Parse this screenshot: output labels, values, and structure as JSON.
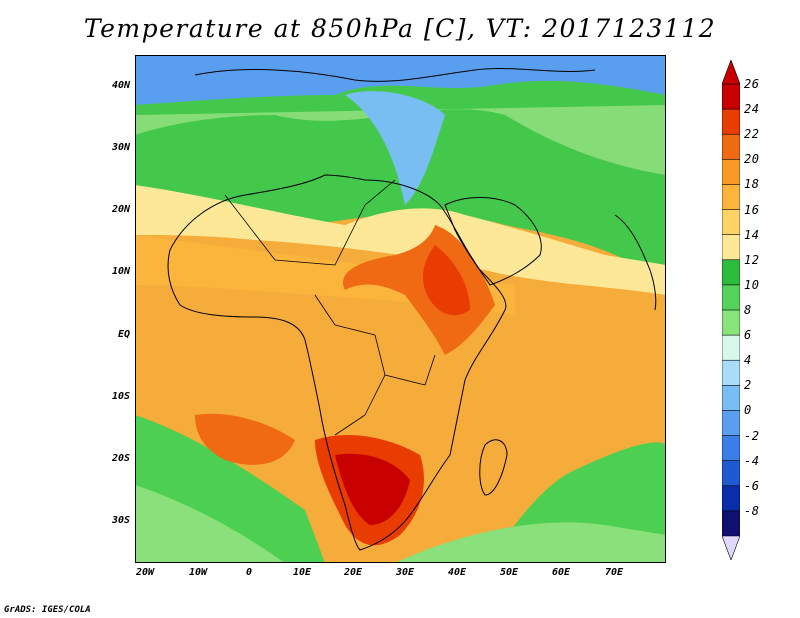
{
  "title": "Temperature at 850hPa [C], VT: 2017123112",
  "credit": "GrADS: IGES/COLA",
  "lat_labels": [
    "40N",
    "30N",
    "20N",
    "10N",
    "EQ",
    "10S",
    "20S",
    "30S"
  ],
  "lon_labels": [
    "20W",
    "10W",
    "0",
    "10E",
    "20E",
    "30E",
    "40E",
    "50E",
    "60E",
    "70E"
  ],
  "colorbar": {
    "labels": [
      "26",
      "24",
      "22",
      "20",
      "18",
      "16",
      "14",
      "12",
      "10",
      "8",
      "6",
      "4",
      "2",
      "0",
      "-2",
      "-4",
      "-6",
      "-8"
    ],
    "colors": [
      "#c80000",
      "#e83c00",
      "#f06a14",
      "#f89a28",
      "#fbb43c",
      "#fdd366",
      "#fde898",
      "#2ebc3c",
      "#55d25a",
      "#88e47a",
      "#d8f8ec",
      "#a8dcf8",
      "#78bef2",
      "#5a9ef0",
      "#3a7ee8",
      "#1e5ad2",
      "#0a2eaa",
      "#101070"
    ],
    "unit": "C"
  },
  "colors": {
    "cold": "#5a9ef0",
    "mild": "#55d25a",
    "warm": "#fdd366",
    "hot": "#f06a14",
    "hottest": "#c80000"
  }
}
